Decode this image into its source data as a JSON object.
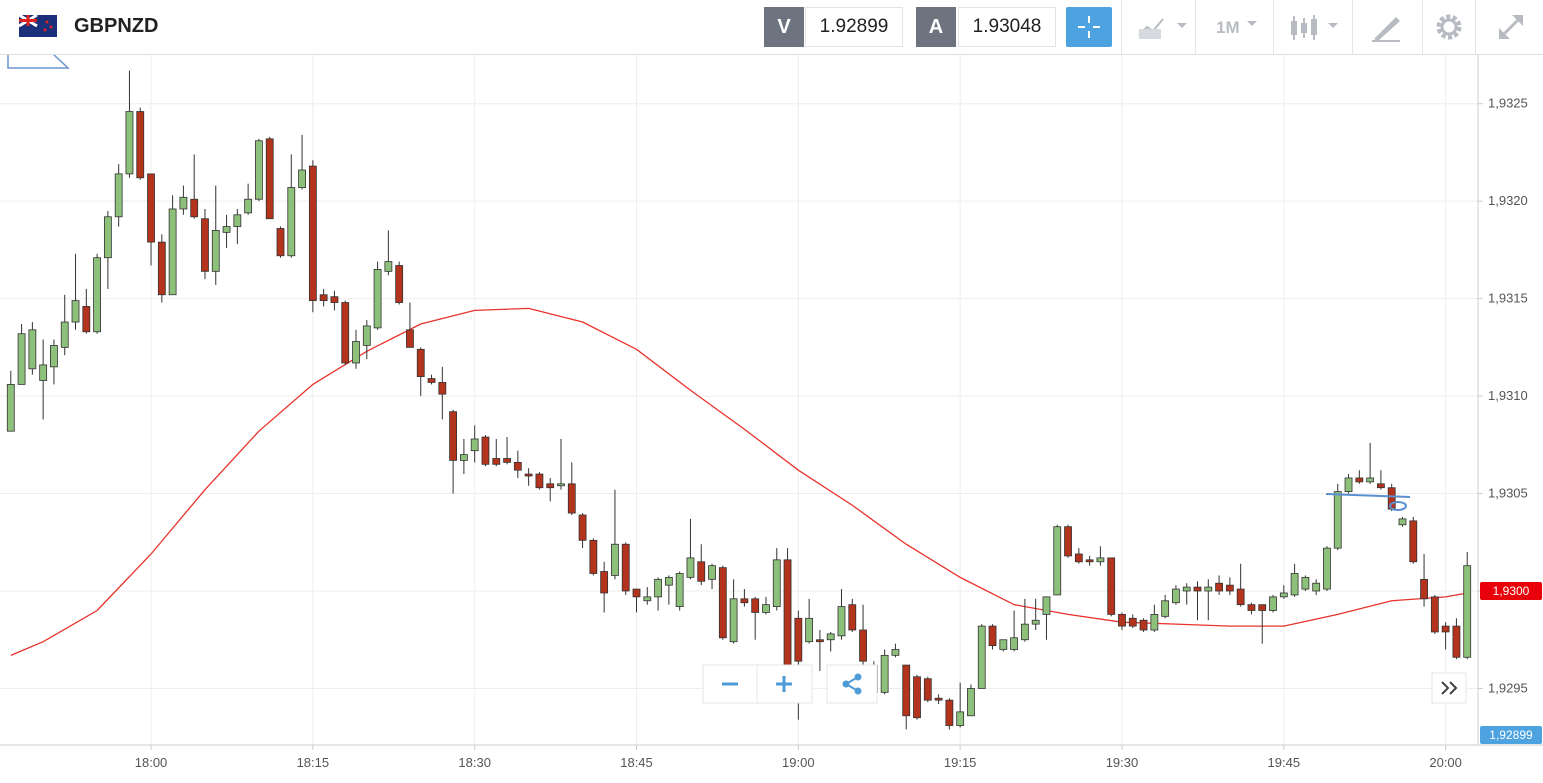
{
  "header": {
    "symbol": "GBPNZD",
    "bid_label": "V",
    "bid": "1.92899",
    "ask_label": "A",
    "ask": "1.93048",
    "timeframe": "1M"
  },
  "chart_data": {
    "type": "candlestick",
    "x": [
      "17:47",
      "17:48",
      "17:49",
      "17:50",
      "17:51",
      "17:52",
      "17:53",
      "17:54",
      "17:55",
      "17:56",
      "17:57",
      "17:58",
      "17:59",
      "18:00",
      "18:01",
      "18:02",
      "18:03",
      "18:04",
      "18:05",
      "18:06",
      "18:07",
      "18:08",
      "18:09",
      "18:10",
      "18:11",
      "18:12",
      "18:13",
      "18:14",
      "18:15",
      "18:16",
      "18:17",
      "18:18",
      "18:19",
      "18:20",
      "18:21",
      "18:22",
      "18:23",
      "18:24",
      "18:25",
      "18:26",
      "18:27",
      "18:28",
      "18:29",
      "18:30",
      "18:31",
      "18:32",
      "18:33",
      "18:34",
      "18:35",
      "18:36",
      "18:37",
      "18:38",
      "18:39",
      "18:40",
      "18:41",
      "18:42",
      "18:43",
      "18:44",
      "18:45",
      "18:46",
      "18:47",
      "18:48",
      "18:49",
      "18:50",
      "18:51",
      "18:52",
      "18:53",
      "18:54",
      "18:55",
      "18:56",
      "18:57",
      "18:58",
      "18:59",
      "19:00",
      "19:01",
      "19:02",
      "19:03",
      "19:04",
      "19:05",
      "19:06",
      "19:07",
      "19:08",
      "19:09",
      "19:10",
      "19:11",
      "19:12",
      "19:13",
      "19:14",
      "19:15",
      "19:16",
      "19:17",
      "19:18",
      "19:19",
      "19:20",
      "19:21",
      "19:22",
      "19:23",
      "19:24",
      "19:25",
      "19:26",
      "19:27",
      "19:28",
      "19:29",
      "19:30",
      "19:31",
      "19:32",
      "19:33",
      "19:34",
      "19:35",
      "19:36",
      "19:37",
      "19:38",
      "19:39",
      "19:40",
      "19:41",
      "19:42",
      "19:43",
      "19:44",
      "19:45",
      "19:46",
      "19:47",
      "19:48",
      "19:49",
      "19:50",
      "19:51",
      "19:52",
      "19:53",
      "19:54",
      "19:55",
      "19:56",
      "19:57",
      "19:58",
      "19:59",
      "20:00",
      "20:01",
      "20:02"
    ],
    "open": [
      1.93082,
      1.93106,
      1.93114,
      1.93108,
      1.93115,
      1.93125,
      1.93138,
      1.93146,
      1.93133,
      1.93171,
      1.93192,
      1.93214,
      1.93246,
      1.93214,
      1.93179,
      1.93152,
      1.93196,
      1.93201,
      1.93191,
      1.93164,
      1.93184,
      1.93187,
      1.93194,
      1.93201,
      1.93232,
      1.93186,
      1.93172,
      1.93207,
      1.93218,
      1.93152,
      1.93151,
      1.93148,
      1.93117,
      1.93126,
      1.93135,
      1.93164,
      1.93167,
      1.93134,
      1.93124,
      1.93109,
      1.93107,
      1.93092,
      1.93067,
      1.93072,
      1.93079,
      1.93068,
      1.93068,
      1.93066,
      1.9306,
      1.9306,
      1.93055,
      1.93054,
      1.93055,
      1.93039,
      1.93026,
      1.9301,
      1.93008,
      1.93024,
      1.93001,
      1.92995,
      1.92997,
      1.93003,
      1.92992,
      1.93007,
      1.93015,
      1.93006,
      1.93012,
      1.92974,
      1.92996,
      1.92996,
      1.92989,
      1.92992,
      1.93016,
      1.92986,
      1.92974,
      1.92975,
      1.92975,
      1.92977,
      1.92993,
      1.9298,
      1.92962,
      1.92948,
      1.92967,
      1.92962,
      1.92956,
      1.92955,
      1.92945,
      1.92944,
      1.92931,
      1.92936,
      1.9295,
      1.92982,
      1.9297,
      1.9297,
      1.92975,
      1.92983,
      1.92988,
      1.92998,
      1.93033,
      1.93019,
      1.93016,
      1.93015,
      1.93017,
      1.92988,
      1.92986,
      1.92985,
      1.9298,
      1.92987,
      1.92994,
      1.93,
      1.93002,
      1.93,
      1.93004,
      1.93003,
      1.93001,
      1.92993,
      1.92993,
      1.9299,
      1.92997,
      1.92998,
      1.93001,
      1.93,
      1.93001,
      1.93022,
      1.93051,
      1.93058,
      1.93056,
      1.93055,
      1.93053,
      1.93034,
      1.93036,
      1.93006,
      1.92997,
      1.92982,
      1.92982,
      1.92966
    ],
    "high": [
      1.93113,
      1.93137,
      1.93138,
      1.93129,
      1.93129,
      1.93152,
      1.93173,
      1.93155,
      1.93173,
      1.93195,
      1.93219,
      1.93267,
      1.93248,
      1.93214,
      1.93183,
      1.93203,
      1.93208,
      1.93224,
      1.93196,
      1.93208,
      1.93193,
      1.93196,
      1.93209,
      1.93232,
      1.93233,
      1.93187,
      1.93224,
      1.93234,
      1.93221,
      1.93155,
      1.93154,
      1.93149,
      1.93134,
      1.93139,
      1.93169,
      1.93185,
      1.93169,
      1.93148,
      1.93125,
      1.93111,
      1.93115,
      1.93093,
      1.93078,
      1.93085,
      1.9308,
      1.93078,
      1.93079,
      1.93072,
      1.93063,
      1.93061,
      1.93058,
      1.93078,
      1.93066,
      1.9304,
      1.93027,
      1.93015,
      1.93052,
      1.93025,
      1.93001,
      1.93002,
      1.93007,
      1.93008,
      1.9301,
      1.93037,
      1.93024,
      1.93014,
      1.93013,
      1.93006,
      1.93001,
      1.92997,
      1.92997,
      1.93022,
      1.93022,
      1.9299,
      1.92996,
      1.9298,
      1.92979,
      1.93001,
      1.92996,
      1.92993,
      1.92964,
      1.9297,
      1.92973,
      1.92962,
      1.92957,
      1.92956,
      1.92947,
      1.92945,
      1.92953,
      1.92952,
      1.92983,
      1.92983,
      1.92975,
      1.9299,
      1.92996,
      1.92996,
      1.92997,
      1.93034,
      1.93034,
      1.93022,
      1.93018,
      1.93023,
      1.93017,
      1.92989,
      1.92988,
      1.92986,
      1.92993,
      1.92998,
      1.93003,
      1.93004,
      1.93005,
      1.93006,
      1.93008,
      1.93007,
      1.93014,
      1.92994,
      1.92993,
      1.92998,
      1.93003,
      1.93014,
      1.93008,
      1.93006,
      1.93023,
      1.93055,
      1.9306,
      1.93062,
      1.93076,
      1.93062,
      1.93055,
      1.93038,
      1.93038,
      1.93019,
      1.92998,
      1.92984,
      1.92986,
      1.9302
    ],
    "low": [
      1.93082,
      1.93106,
      1.93111,
      1.93088,
      1.93106,
      1.93121,
      1.93134,
      1.93132,
      1.93132,
      1.93155,
      1.93187,
      1.93212,
      1.93211,
      1.93167,
      1.93148,
      1.93152,
      1.93193,
      1.93191,
      1.9316,
      1.93157,
      1.93176,
      1.93178,
      1.93193,
      1.932,
      1.93191,
      1.93171,
      1.93171,
      1.93206,
      1.93143,
      1.93146,
      1.93144,
      1.93116,
      1.93114,
      1.93119,
      1.93134,
      1.93162,
      1.93147,
      1.93125,
      1.931,
      1.93106,
      1.93088,
      1.9305,
      1.9306,
      1.93066,
      1.93064,
      1.93064,
      1.93065,
      1.93058,
      1.93054,
      1.93052,
      1.93046,
      1.93052,
      1.93039,
      1.93022,
      1.93008,
      1.92989,
      1.93006,
      1.92998,
      1.92989,
      1.92993,
      1.9299,
      1.92993,
      1.9299,
      1.93006,
      1.93003,
      1.93001,
      1.92975,
      1.92973,
      1.92992,
      1.92975,
      1.92988,
      1.9299,
      1.92955,
      1.92934,
      1.92973,
      1.92959,
      1.92969,
      1.92975,
      1.92979,
      1.92962,
      1.92947,
      1.92947,
      1.92966,
      1.92929,
      1.92934,
      1.92943,
      1.92942,
      1.92929,
      1.9293,
      1.92936,
      1.9295,
      1.9297,
      1.92969,
      1.92969,
      1.92974,
      1.9298,
      1.92975,
      1.92998,
      1.93017,
      1.93014,
      1.93013,
      1.93013,
      1.92987,
      1.9298,
      1.92981,
      1.92979,
      1.92979,
      1.92986,
      1.92993,
      1.92993,
      1.92985,
      1.92985,
      1.92998,
      1.92998,
      1.92992,
      1.92988,
      1.92973,
      1.92989,
      1.92996,
      1.92997,
      1.93,
      1.92998,
      1.93,
      1.93021,
      1.9305,
      1.93055,
      1.93055,
      1.93052,
      1.93041,
      1.93033,
      1.93014,
      1.92992,
      1.92978,
      1.9297,
      1.92965,
      1.92965
    ],
    "close": [
      1.93106,
      1.93132,
      1.93134,
      1.93116,
      1.93126,
      1.93138,
      1.93149,
      1.93133,
      1.93171,
      1.93192,
      1.93214,
      1.93246,
      1.93212,
      1.93179,
      1.93152,
      1.93196,
      1.93202,
      1.93192,
      1.93164,
      1.93185,
      1.93187,
      1.93193,
      1.93201,
      1.93231,
      1.93191,
      1.93172,
      1.93207,
      1.93216,
      1.93149,
      1.93149,
      1.93148,
      1.93117,
      1.93128,
      1.93136,
      1.93165,
      1.93169,
      1.93148,
      1.93125,
      1.9311,
      1.93107,
      1.93101,
      1.93067,
      1.9307,
      1.93078,
      1.93065,
      1.93065,
      1.93066,
      1.93062,
      1.93059,
      1.93053,
      1.93053,
      1.93055,
      1.9304,
      1.93026,
      1.93009,
      1.92999,
      1.93024,
      1.93,
      1.92997,
      1.92997,
      1.93006,
      1.93007,
      1.93009,
      1.93017,
      1.93005,
      1.93013,
      1.92976,
      1.92996,
      1.92994,
      1.92989,
      1.92993,
      1.93016,
      1.92956,
      1.92964,
      1.92986,
      1.92974,
      1.92978,
      1.92992,
      1.9298,
      1.92964,
      1.92948,
      1.92967,
      1.9297,
      1.92936,
      1.92935,
      1.92944,
      1.92944,
      1.92931,
      1.92938,
      1.9295,
      1.92982,
      1.92972,
      1.92975,
      1.92976,
      1.92983,
      1.92985,
      1.92997,
      1.93033,
      1.93018,
      1.93015,
      1.93015,
      1.93017,
      1.92988,
      1.92982,
      1.92982,
      1.9298,
      1.92988,
      1.92995,
      1.93001,
      1.93002,
      1.93,
      1.93002,
      1.93,
      1.93,
      1.92993,
      1.9299,
      1.9299,
      1.92997,
      1.92999,
      1.93009,
      1.93007,
      1.93004,
      1.93022,
      1.93051,
      1.93058,
      1.93056,
      1.93058,
      1.93053,
      1.93042,
      1.93037,
      1.93015,
      1.92996,
      1.92979,
      1.92979,
      1.92966,
      1.93013
    ],
    "up_color": "#8dc07a",
    "down_color": "#b3331c",
    "moving_average": {
      "color": "#e8322b",
      "x": [
        "17:47",
        "17:50",
        "17:55",
        "18:00",
        "18:05",
        "18:10",
        "18:15",
        "18:20",
        "18:25",
        "18:30",
        "18:35",
        "18:40",
        "18:45",
        "18:50",
        "18:55",
        "19:00",
        "19:05",
        "19:10",
        "19:15",
        "19:20",
        "19:25",
        "19:30",
        "19:35",
        "19:40",
        "19:45",
        "19:50",
        "19:55",
        "20:00",
        "20:02"
      ],
      "values": [
        1.92967,
        1.92974,
        1.9299,
        1.93019,
        1.93052,
        1.93082,
        1.93106,
        1.93123,
        1.93137,
        1.93144,
        1.93145,
        1.93138,
        1.93124,
        1.93103,
        1.93083,
        1.93062,
        1.93044,
        1.93024,
        1.93007,
        1.92993,
        1.92988,
        1.92984,
        1.92983,
        1.92982,
        1.92982,
        1.92988,
        1.92995,
        1.92997,
        1.92999
      ]
    },
    "xlim": [
      "17:46",
      "20:03"
    ],
    "xticks": [
      "18:00",
      "18:15",
      "18:30",
      "18:45",
      "19:00",
      "19:15",
      "19:30",
      "19:45",
      "20:00"
    ],
    "ylim": [
      1.92921,
      1.93275
    ],
    "yticks": [
      {
        "value": 1.9295,
        "label": "1,9295"
      },
      {
        "value": 1.93,
        "label": "1,9300"
      },
      {
        "value": 1.9305,
        "label": "1,9305"
      },
      {
        "value": 1.931,
        "label": "1,9310"
      },
      {
        "value": 1.9315,
        "label": "1,9315"
      },
      {
        "value": 1.932,
        "label": "1,9320"
      },
      {
        "value": 1.9325,
        "label": "1,9325"
      }
    ],
    "grid": true,
    "price_tags": [
      {
        "value": 1.93,
        "label": "1,9300",
        "color": "#e8000b"
      },
      {
        "value": 1.92899,
        "label": "1,92899",
        "color": "#4da3e0"
      }
    ]
  }
}
